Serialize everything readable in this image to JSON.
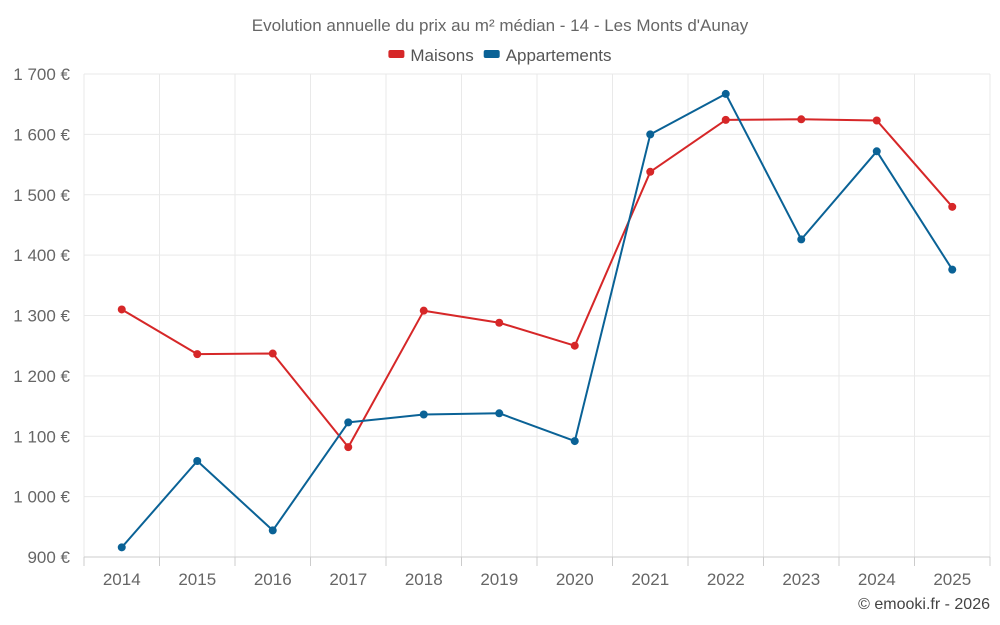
{
  "chart_data": {
    "type": "line",
    "title": "Evolution annuelle du prix au m² médian - 14 - Les Monts d'Aunay",
    "categories": [
      "2014",
      "2015",
      "2016",
      "2017",
      "2018",
      "2019",
      "2020",
      "2021",
      "2022",
      "2023",
      "2024",
      "2025"
    ],
    "series": [
      {
        "name": "Maisons",
        "color": "#d62728",
        "values": [
          1310,
          1236,
          1237,
          1082,
          1308,
          1288,
          1250,
          1538,
          1624,
          1625,
          1623,
          1480
        ]
      },
      {
        "name": "Appartements",
        "color": "#0a6296",
        "values": [
          916,
          1059,
          944,
          1123,
          1136,
          1138,
          1092,
          1600,
          1667,
          1426,
          1572,
          1376
        ]
      }
    ],
    "ylim": [
      900,
      1700
    ],
    "yticks": [
      900,
      1000,
      1100,
      1200,
      1300,
      1400,
      1500,
      1600,
      1700
    ],
    "ytick_labels": [
      "900 €",
      "1 000 €",
      "1 100 €",
      "1 200 €",
      "1 300 €",
      "1 400 €",
      "1 500 €",
      "1 600 €",
      "1 700 €"
    ],
    "xlabel": "",
    "ylabel": "",
    "grid": true,
    "legend_position": "top-center"
  },
  "credit": "© emooki.fr - 2026"
}
